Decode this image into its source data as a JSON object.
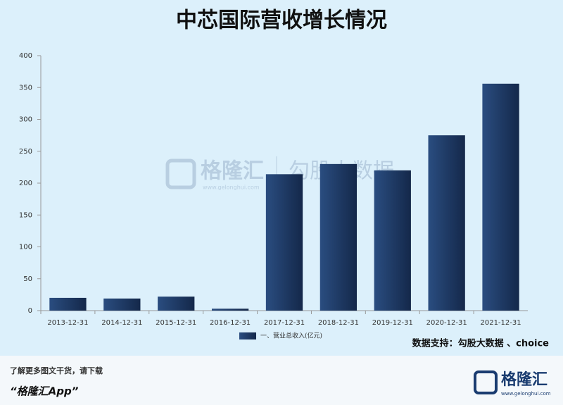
{
  "chart_data": {
    "type": "bar",
    "title": "中芯国际营收增长情况",
    "categories": [
      "2013-12-31",
      "2014-12-31",
      "2015-12-31",
      "2016-12-31",
      "2017-12-31",
      "2018-12-31",
      "2019-12-31",
      "2020-12-31",
      "2021-12-31"
    ],
    "series": [
      {
        "name": "一、营业总收入(亿元)",
        "color": "#2a4d80",
        "values": [
          20,
          19,
          22,
          3,
          214,
          230,
          220,
          275,
          356
        ]
      }
    ],
    "ylim": [
      0,
      400
    ],
    "yticks": [
      0,
      50,
      100,
      150,
      200,
      250,
      300,
      350,
      400
    ],
    "grid": false,
    "source": "数据支持：勾股大数据 、choice",
    "watermark": {
      "brand": "格隆汇",
      "source": "勾股大数据",
      "url": "www.gelonghui.com"
    }
  },
  "footer": {
    "prompt": "了解更多图文干货，请下载",
    "app": "“格隆汇App”",
    "logo": "格隆汇",
    "url": "www.gelonghui.com"
  }
}
